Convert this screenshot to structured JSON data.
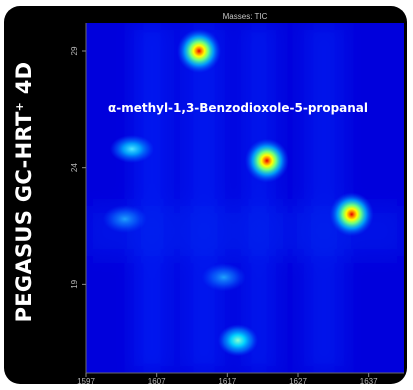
{
  "brand": {
    "name": "PEGASUS GC-HRT",
    "superscript": "+",
    "suffix": "4D"
  },
  "chart_data": {
    "type": "heatmap",
    "title": "Masses: TIC",
    "annotation": "α-methyl-1,3-Benzodioxole-5-propanal",
    "xlabel": "",
    "ylabel": "",
    "xlim": [
      1597,
      1642
    ],
    "ylim": [
      15.2,
      30.2
    ],
    "x_ticks": [
      1597,
      1607,
      1617,
      1627,
      1637
    ],
    "y_ticks": [
      19,
      24,
      29
    ],
    "grid": false,
    "colormap": [
      "#0000dc",
      "#0050ff",
      "#00c8ff",
      "#6cff80",
      "#ffff00",
      "#ff8000",
      "#e00000"
    ],
    "peaks": [
      {
        "x": 1613.0,
        "y": 29.0,
        "intensity": 1.0
      },
      {
        "x": 1622.6,
        "y": 24.3,
        "intensity": 0.95
      },
      {
        "x": 1634.6,
        "y": 22.0,
        "intensity": 0.92
      },
      {
        "x": 1603.5,
        "y": 24.8,
        "intensity": 0.35
      },
      {
        "x": 1602.5,
        "y": 21.8,
        "intensity": 0.22
      },
      {
        "x": 1616.5,
        "y": 19.3,
        "intensity": 0.28
      },
      {
        "x": 1618.5,
        "y": 16.6,
        "intensity": 0.42
      }
    ]
  }
}
